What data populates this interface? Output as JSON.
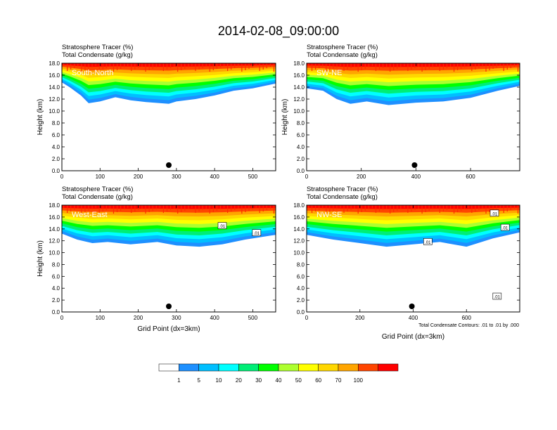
{
  "figure": {
    "title": "2014-02-08_09:00:00",
    "contour_note": "Total Condensate Contours: .01 to .01 by .000"
  },
  "colorbar": {
    "colors": [
      "#ffffff",
      "#1e90ff",
      "#00bfff",
      "#00ffff",
      "#00ee76",
      "#00ff00",
      "#adff2f",
      "#ffff00",
      "#ffd700",
      "#ffa500",
      "#ff4500",
      "#ff0000"
    ],
    "labels": [
      "1",
      "5",
      "10",
      "20",
      "30",
      "40",
      "50",
      "60",
      "70",
      "100"
    ],
    "icons": {
      "white_box": "outline-box"
    }
  },
  "chart_data": [
    {
      "type": "heatmap",
      "panel": "top-left",
      "subtitle1": "Stratosphere Tracer   (%)",
      "subtitle2": "Total Condensate   (g/kg)",
      "inset_label": "South-North",
      "xlabel": "",
      "ylabel": "Height (km)",
      "xlim": [
        0,
        560
      ],
      "ylim": [
        0,
        18
      ],
      "xticks": [
        0,
        100,
        200,
        300,
        400,
        500
      ],
      "yticks": [
        0.0,
        2.0,
        4.0,
        6.0,
        8.0,
        10.0,
        12.0,
        14.0,
        16.0,
        18.0
      ],
      "tracer_bottom_km": [
        [
          0,
          14.8
        ],
        [
          20,
          14.0
        ],
        [
          50,
          12.6
        ],
        [
          70,
          11.3
        ],
        [
          100,
          11.6
        ],
        [
          140,
          12.3
        ],
        [
          180,
          11.8
        ],
        [
          220,
          11.5
        ],
        [
          280,
          11.2
        ],
        [
          300,
          11.6
        ],
        [
          350,
          12.0
        ],
        [
          400,
          12.6
        ],
        [
          450,
          13.4
        ],
        [
          500,
          13.8
        ],
        [
          560,
          14.6
        ]
      ],
      "surface_marker_x": 280,
      "contour_labels": []
    },
    {
      "type": "heatmap",
      "panel": "top-right",
      "subtitle1": "Stratosphere Tracer   (%)",
      "subtitle2": "Total Condensate   (g/kg)",
      "inset_label": "SW-NE",
      "xlabel": "",
      "ylabel": "Height (km)",
      "xlim": [
        0,
        780
      ],
      "ylim": [
        0,
        18
      ],
      "xticks": [
        0,
        200,
        400,
        600
      ],
      "yticks": [
        0.0,
        2.0,
        4.0,
        6.0,
        8.0,
        10.0,
        12.0,
        14.0,
        16.0,
        18.0
      ],
      "tracer_bottom_km": [
        [
          0,
          13.8
        ],
        [
          60,
          13.4
        ],
        [
          110,
          12.0
        ],
        [
          160,
          11.2
        ],
        [
          220,
          11.6
        ],
        [
          300,
          11.0
        ],
        [
          400,
          11.4
        ],
        [
          500,
          11.6
        ],
        [
          600,
          12.2
        ],
        [
          700,
          13.4
        ],
        [
          780,
          14.2
        ]
      ],
      "surface_marker_x": 395,
      "contour_labels": []
    },
    {
      "type": "heatmap",
      "panel": "bottom-left",
      "subtitle1": "Stratosphere Tracer   (%)",
      "subtitle2": "Total Condensate   (g/kg)",
      "inset_label": "West-East",
      "xlabel": "Grid Point (dx=3km)",
      "ylabel": "Height (km)",
      "xlim": [
        0,
        560
      ],
      "ylim": [
        0,
        18
      ],
      "xticks": [
        0,
        100,
        200,
        300,
        400,
        500
      ],
      "yticks": [
        0.0,
        2.0,
        4.0,
        6.0,
        8.0,
        10.0,
        12.0,
        14.0,
        16.0,
        18.0
      ],
      "tracer_bottom_km": [
        [
          0,
          13.2
        ],
        [
          40,
          12.2
        ],
        [
          80,
          11.6
        ],
        [
          120,
          11.8
        ],
        [
          180,
          11.4
        ],
        [
          250,
          11.8
        ],
        [
          300,
          11.2
        ],
        [
          360,
          11.0
        ],
        [
          420,
          11.4
        ],
        [
          480,
          12.2
        ],
        [
          560,
          13.0
        ]
      ],
      "surface_marker_x": 280,
      "contour_labels": [
        {
          "x": 420,
          "y": 14.5,
          "text": ".01"
        },
        {
          "x": 510,
          "y": 13.3,
          "text": ".01"
        }
      ]
    },
    {
      "type": "heatmap",
      "panel": "bottom-right",
      "subtitle1": "Stratosphere Tracer   (%)",
      "subtitle2": "Total Condensate   (g/kg)",
      "inset_label": "NW-SE",
      "xlabel": "Grid Point (dx=3km)",
      "ylabel": "",
      "xlim": [
        0,
        800
      ],
      "ylim": [
        0,
        18
      ],
      "xticks": [
        0,
        200,
        400,
        600
      ],
      "yticks": [
        0.0,
        2.0,
        4.0,
        6.0,
        8.0,
        10.0,
        12.0,
        14.0,
        16.0,
        18.0
      ],
      "tracer_bottom_km": [
        [
          0,
          13.0
        ],
        [
          100,
          12.2
        ],
        [
          200,
          11.6
        ],
        [
          300,
          11.0
        ],
        [
          400,
          11.4
        ],
        [
          500,
          11.8
        ],
        [
          600,
          11.0
        ],
        [
          700,
          12.4
        ],
        [
          800,
          13.4
        ]
      ],
      "surface_marker_x": 395,
      "contour_labels": [
        {
          "x": 705,
          "y": 16.6,
          "text": ".01"
        },
        {
          "x": 745,
          "y": 14.2,
          "text": ".01"
        },
        {
          "x": 455,
          "y": 11.8,
          "text": ".01"
        },
        {
          "x": 715,
          "y": 2.6,
          "text": ".01"
        }
      ]
    }
  ]
}
